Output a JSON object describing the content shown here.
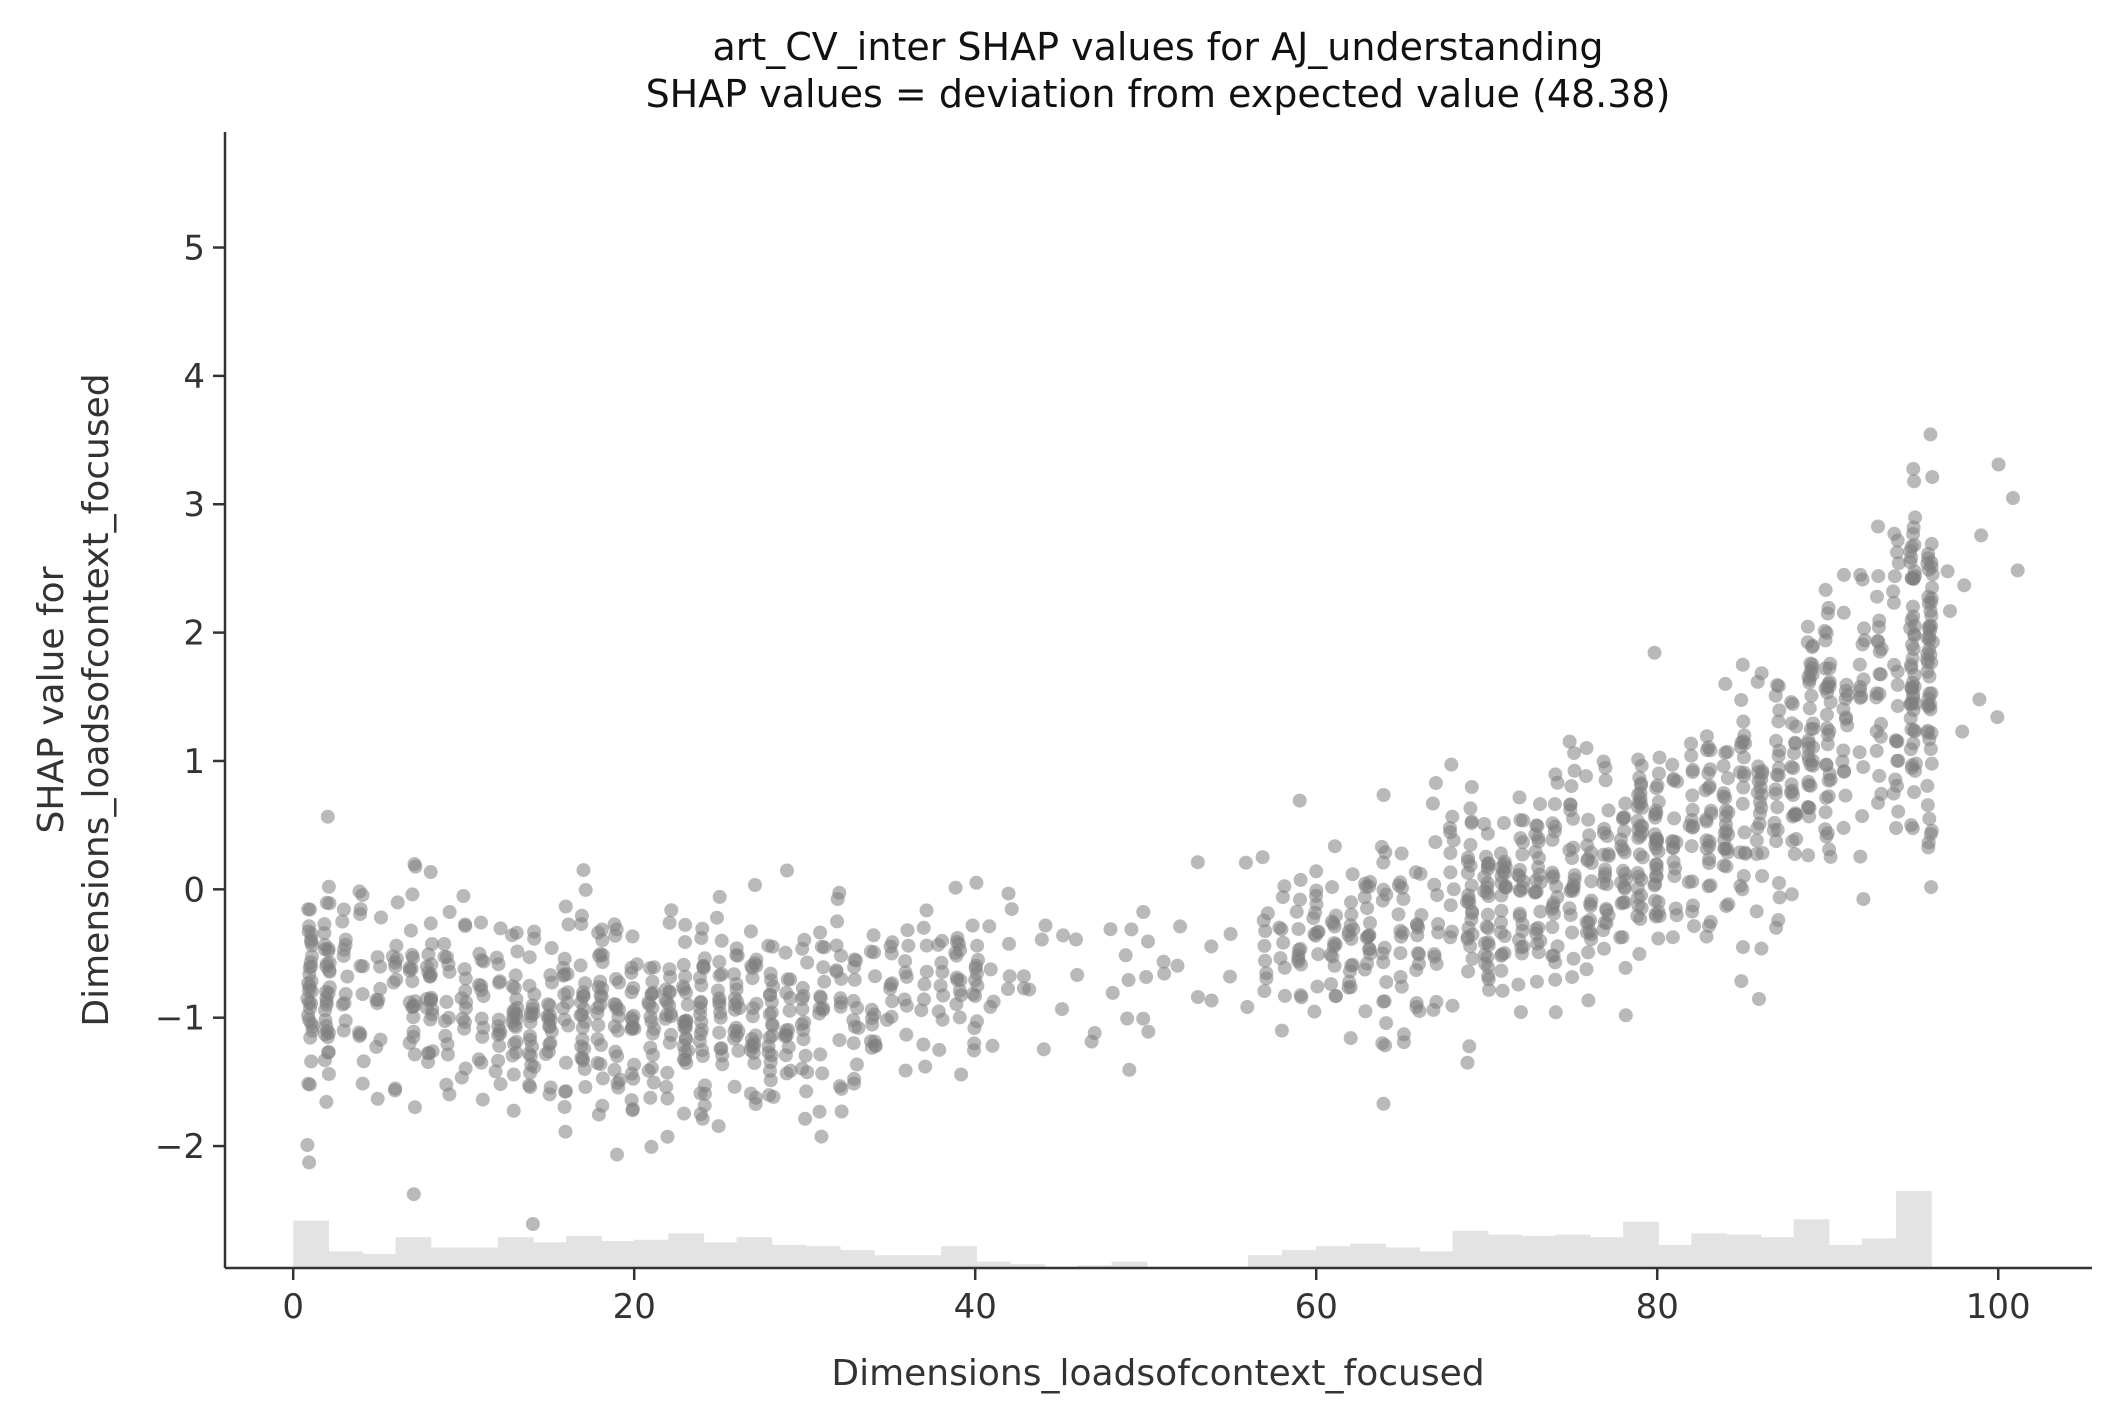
{
  "chart_data": {
    "type": "scatter",
    "title": "art_CV_inter SHAP values for AJ_understanding",
    "subtitle": "SHAP values = deviation from expected value (48.38)",
    "xlabel": "Dimensions_loadsofcontext_focused",
    "ylabel_lines": [
      "SHAP value for",
      "Dimensions_loadsofcontext_focused"
    ],
    "xlim": [
      -4,
      105.5
    ],
    "ylim": [
      -2.95,
      5.9
    ],
    "x_ticks": [
      0,
      20,
      40,
      60,
      80,
      100
    ],
    "y_ticks": [
      -2,
      -1,
      0,
      1,
      2,
      3,
      4,
      5
    ],
    "y_tick_labels": [
      "−2",
      "−1",
      "0",
      "1",
      "2",
      "3",
      "4",
      "5"
    ],
    "grid": false,
    "legend": "none",
    "marker_color": "#7f7f7f",
    "marker_alpha": 0.55,
    "histogram_color": "#e3e3e3",
    "trend": {
      "x": [
        1,
        5,
        10,
        15,
        20,
        25,
        30,
        35,
        40,
        45,
        50,
        55,
        60,
        65,
        70,
        75,
        80,
        85,
        90,
        95,
        100
      ],
      "y": [
        -0.75,
        -0.7,
        -0.85,
        -0.95,
        -1.0,
        -1.0,
        -0.95,
        -0.8,
        -0.65,
        -0.6,
        -0.55,
        -0.5,
        -0.4,
        -0.3,
        -0.15,
        0.05,
        0.3,
        0.6,
        1.3,
        1.8,
        2.2
      ],
      "spread": [
        0.45,
        0.4,
        0.4,
        0.4,
        0.4,
        0.4,
        0.4,
        0.4,
        0.35,
        0.35,
        0.35,
        0.35,
        0.35,
        0.35,
        0.4,
        0.45,
        0.45,
        0.5,
        0.55,
        0.65,
        0.75
      ]
    },
    "histogram": {
      "bin_starts": [
        0,
        2,
        4,
        6,
        8,
        10,
        12,
        14,
        16,
        18,
        20,
        22,
        24,
        26,
        28,
        30,
        32,
        34,
        36,
        38,
        40,
        42,
        44,
        46,
        48,
        50,
        52,
        54,
        56,
        58,
        60,
        62,
        64,
        66,
        68,
        70,
        72,
        74,
        76,
        78,
        80,
        82,
        84,
        86,
        88,
        90,
        92,
        94,
        96,
        98,
        100
      ],
      "bin_width": 2.1,
      "heights": [
        0.37,
        0.13,
        0.11,
        0.24,
        0.16,
        0.16,
        0.24,
        0.2,
        0.25,
        0.21,
        0.22,
        0.27,
        0.2,
        0.24,
        0.18,
        0.17,
        0.14,
        0.1,
        0.1,
        0.17,
        0.05,
        0.03,
        0.01,
        0.02,
        0.05,
        0.01,
        0.0,
        0.0,
        0.1,
        0.14,
        0.17,
        0.19,
        0.16,
        0.13,
        0.29,
        0.26,
        0.25,
        0.26,
        0.24,
        0.36,
        0.18,
        0.27,
        0.26,
        0.24,
        0.38,
        0.18,
        0.23,
        0.6,
        0.0,
        0.0,
        0.0
      ]
    }
  }
}
